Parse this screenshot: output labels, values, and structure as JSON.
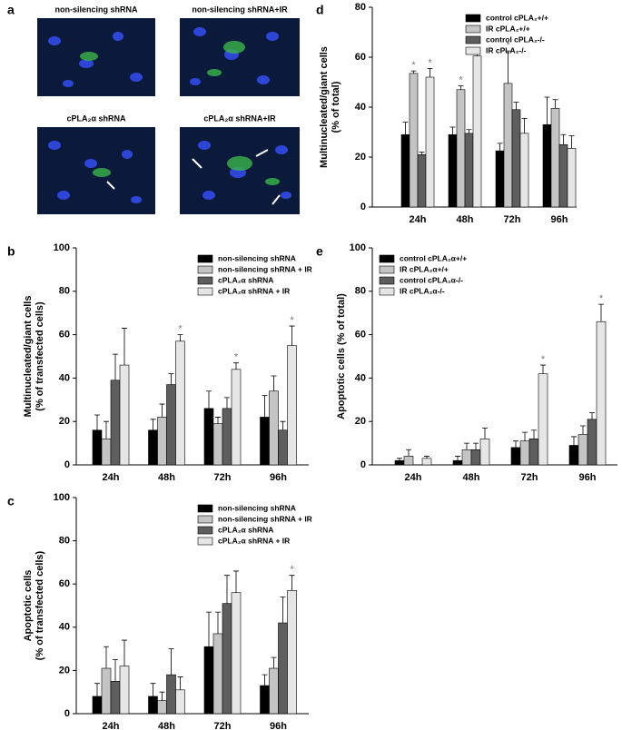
{
  "panel_a": {
    "label": "a",
    "captions": [
      "non-silencing shRNA",
      "non-silencing shRNA+IR",
      "cPLA₂α shRNA",
      "cPLA₂α shRNA+IR"
    ]
  },
  "chart_data": [
    {
      "type": "bar",
      "label": "b",
      "ylabel": [
        "Multinucleated/giant cells",
        "(% of transfected cells)"
      ],
      "categories": [
        "24h",
        "48h",
        "72h",
        "96h"
      ],
      "ylim": [
        0,
        100
      ],
      "yticks": [
        0,
        20,
        40,
        60,
        80,
        100
      ],
      "legend": "upper right",
      "series": [
        {
          "name": "non-silencing shRNA",
          "color": "#000000",
          "values": [
            16,
            16,
            26,
            22
          ],
          "errors": [
            7,
            5,
            8,
            10
          ],
          "significance": [
            null,
            null,
            null,
            null
          ]
        },
        {
          "name": "non-silencing shRNA + IR",
          "color": "#c4c4c4",
          "values": [
            12,
            22,
            19,
            34
          ],
          "errors": [
            8,
            6,
            3,
            7
          ],
          "significance": [
            null,
            null,
            null,
            null
          ]
        },
        {
          "name": "cPLA₂α shRNA",
          "color": "#5e5e5e",
          "values": [
            39,
            37,
            26,
            16
          ],
          "errors": [
            12,
            5,
            5,
            4
          ],
          "significance": [
            null,
            null,
            null,
            null
          ]
        },
        {
          "name": "cPLA₂α shRNA + IR",
          "color": "#e6e6e6",
          "values": [
            46,
            57,
            44,
            55
          ],
          "errors": [
            17,
            3,
            3,
            9
          ],
          "significance": [
            null,
            "*",
            "*",
            "*"
          ]
        }
      ]
    },
    {
      "type": "bar",
      "label": "c",
      "ylabel": [
        "Apoptotic cells",
        "(% of transfected cells)"
      ],
      "categories": [
        "24h",
        "48h",
        "72h",
        "96h"
      ],
      "ylim": [
        0,
        100
      ],
      "yticks": [
        0,
        20,
        40,
        60,
        80,
        100
      ],
      "legend": "upper right",
      "series": [
        {
          "name": "non-silencing shRNA",
          "color": "#000000",
          "values": [
            8,
            8,
            31,
            13
          ],
          "errors": [
            6,
            6,
            16,
            5
          ],
          "significance": [
            null,
            null,
            null,
            null
          ]
        },
        {
          "name": "non-silencing shRNA + IR",
          "color": "#c4c4c4",
          "values": [
            21,
            6,
            37,
            21
          ],
          "errors": [
            10,
            4,
            10,
            5
          ],
          "significance": [
            null,
            null,
            null,
            null
          ]
        },
        {
          "name": "cPLA₂α shRNA",
          "color": "#5e5e5e",
          "values": [
            15,
            18,
            51,
            42
          ],
          "errors": [
            10,
            12,
            13,
            12
          ],
          "significance": [
            null,
            null,
            null,
            null
          ]
        },
        {
          "name": "cPLA₂α shRNA + IR",
          "color": "#e6e6e6",
          "values": [
            22,
            11,
            56,
            57
          ],
          "errors": [
            12,
            6,
            10,
            7
          ],
          "significance": [
            null,
            null,
            null,
            "*"
          ]
        }
      ]
    },
    {
      "type": "bar",
      "label": "d",
      "ylabel": [
        "Multinucleated/giant cells",
        "(% of total)"
      ],
      "categories": [
        "24h",
        "48h",
        "72h",
        "96h"
      ],
      "ylim": [
        0,
        80
      ],
      "yticks": [
        0,
        20,
        40,
        60,
        80
      ],
      "legend": "upper right",
      "series": [
        {
          "name": "control cPLA₂+/+",
          "color": "#000000",
          "values": [
            29,
            29,
            22.5,
            33
          ],
          "errors": [
            5,
            3,
            3,
            11
          ],
          "significance": [
            null,
            null,
            null,
            null
          ]
        },
        {
          "name": "IR cPLA₂+/+",
          "color": "#c4c4c4",
          "values": [
            53.5,
            47,
            49.5,
            39.5
          ],
          "errors": [
            1,
            1.5,
            13,
            3.5
          ],
          "significance": [
            "*",
            "*",
            "*",
            null
          ]
        },
        {
          "name": "control cPLA₂-/-",
          "color": "#5e5e5e",
          "values": [
            21,
            29.5,
            39,
            25
          ],
          "errors": [
            1,
            1.5,
            3,
            4
          ],
          "significance": [
            null,
            null,
            null,
            null
          ]
        },
        {
          "name": "IR cPLA₂-/-",
          "color": "#e6e6e6",
          "values": [
            52,
            60.5,
            29.5,
            23.5
          ],
          "errors": [
            3.5,
            2.5,
            6,
            5
          ],
          "significance": [
            "*",
            "*",
            null,
            null
          ]
        }
      ]
    },
    {
      "type": "bar",
      "label": "e",
      "ylabel": [
        "Apoptotic cells (% of total)"
      ],
      "categories": [
        "24h",
        "48h",
        "72h",
        "96h"
      ],
      "ylim": [
        0,
        100
      ],
      "yticks": [
        0,
        20,
        40,
        60,
        80,
        100
      ],
      "legend": "upper left",
      "series": [
        {
          "name": "control cPLA₂α+/+",
          "color": "#000000",
          "values": [
            2,
            2,
            8,
            9
          ],
          "errors": [
            1,
            2,
            3,
            4
          ],
          "significance": [
            null,
            null,
            null,
            null
          ]
        },
        {
          "name": "IR cPLA₂α+/+",
          "color": "#c4c4c4",
          "values": [
            4,
            7,
            11,
            14
          ],
          "errors": [
            3,
            3,
            4,
            4
          ],
          "significance": [
            null,
            null,
            null,
            null
          ]
        },
        {
          "name": "control cPLA₂α-/-",
          "color": "#5e5e5e",
          "values": [
            0,
            7,
            12,
            21
          ],
          "errors": [
            0,
            3,
            4,
            3
          ],
          "significance": [
            null,
            null,
            null,
            null
          ]
        },
        {
          "name": "IR cPLA₂α-/-",
          "color": "#e6e6e6",
          "values": [
            3,
            12,
            42,
            66
          ],
          "errors": [
            1,
            5,
            4,
            8
          ],
          "significance": [
            null,
            null,
            "*",
            "*"
          ]
        }
      ]
    }
  ]
}
